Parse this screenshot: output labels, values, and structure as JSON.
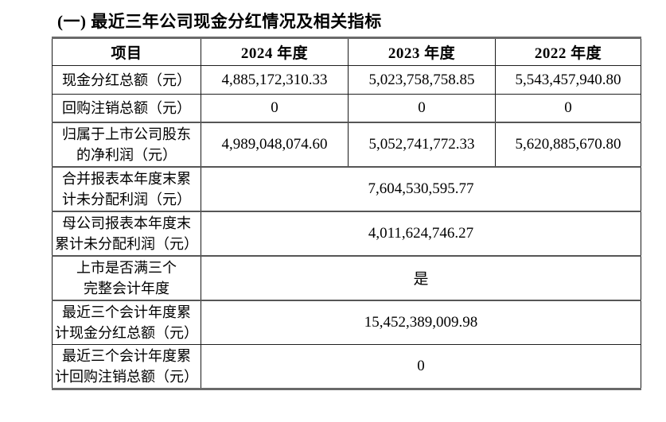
{
  "title": "(一) 最近三年公司现金分红情况及相关指标",
  "table": {
    "headers": [
      "项目",
      "2024 年度",
      "2023 年度",
      "2022 年度"
    ],
    "rows": [
      {
        "label": "现金分红总额（元）",
        "values": [
          "4,885,172,310.33",
          "5,023,758,758.85",
          "5,543,457,940.80"
        ]
      },
      {
        "label": "回购注销总额（元）",
        "values": [
          "0",
          "0",
          "0"
        ]
      },
      {
        "label": "归属于上市公司股东\n的净利润（元）",
        "values": [
          "4,989,048,074.60",
          "5,052,741,772.33",
          "5,620,885,670.80"
        ]
      },
      {
        "label": "合并报表本年度末累\n计未分配利润（元）",
        "merged_value": "7,604,530,595.77"
      },
      {
        "label": "母公司报表本年度末\n累计未分配利润（元）",
        "merged_value": "4,011,624,746.27"
      },
      {
        "label": "上市是否满三个\n完整会计年度",
        "merged_value": "是"
      },
      {
        "label": "最近三个会计年度累\n计现金分红总额（元）",
        "merged_value": "15,452,389,009.98"
      },
      {
        "label": "最近三个会计年度累\n计回购注销总额（元）",
        "merged_value": "0"
      }
    ]
  },
  "colors": {
    "text": "#000000",
    "border_thin": "#1f1f1f",
    "border_thick": "#565656",
    "background": "#ffffff"
  }
}
